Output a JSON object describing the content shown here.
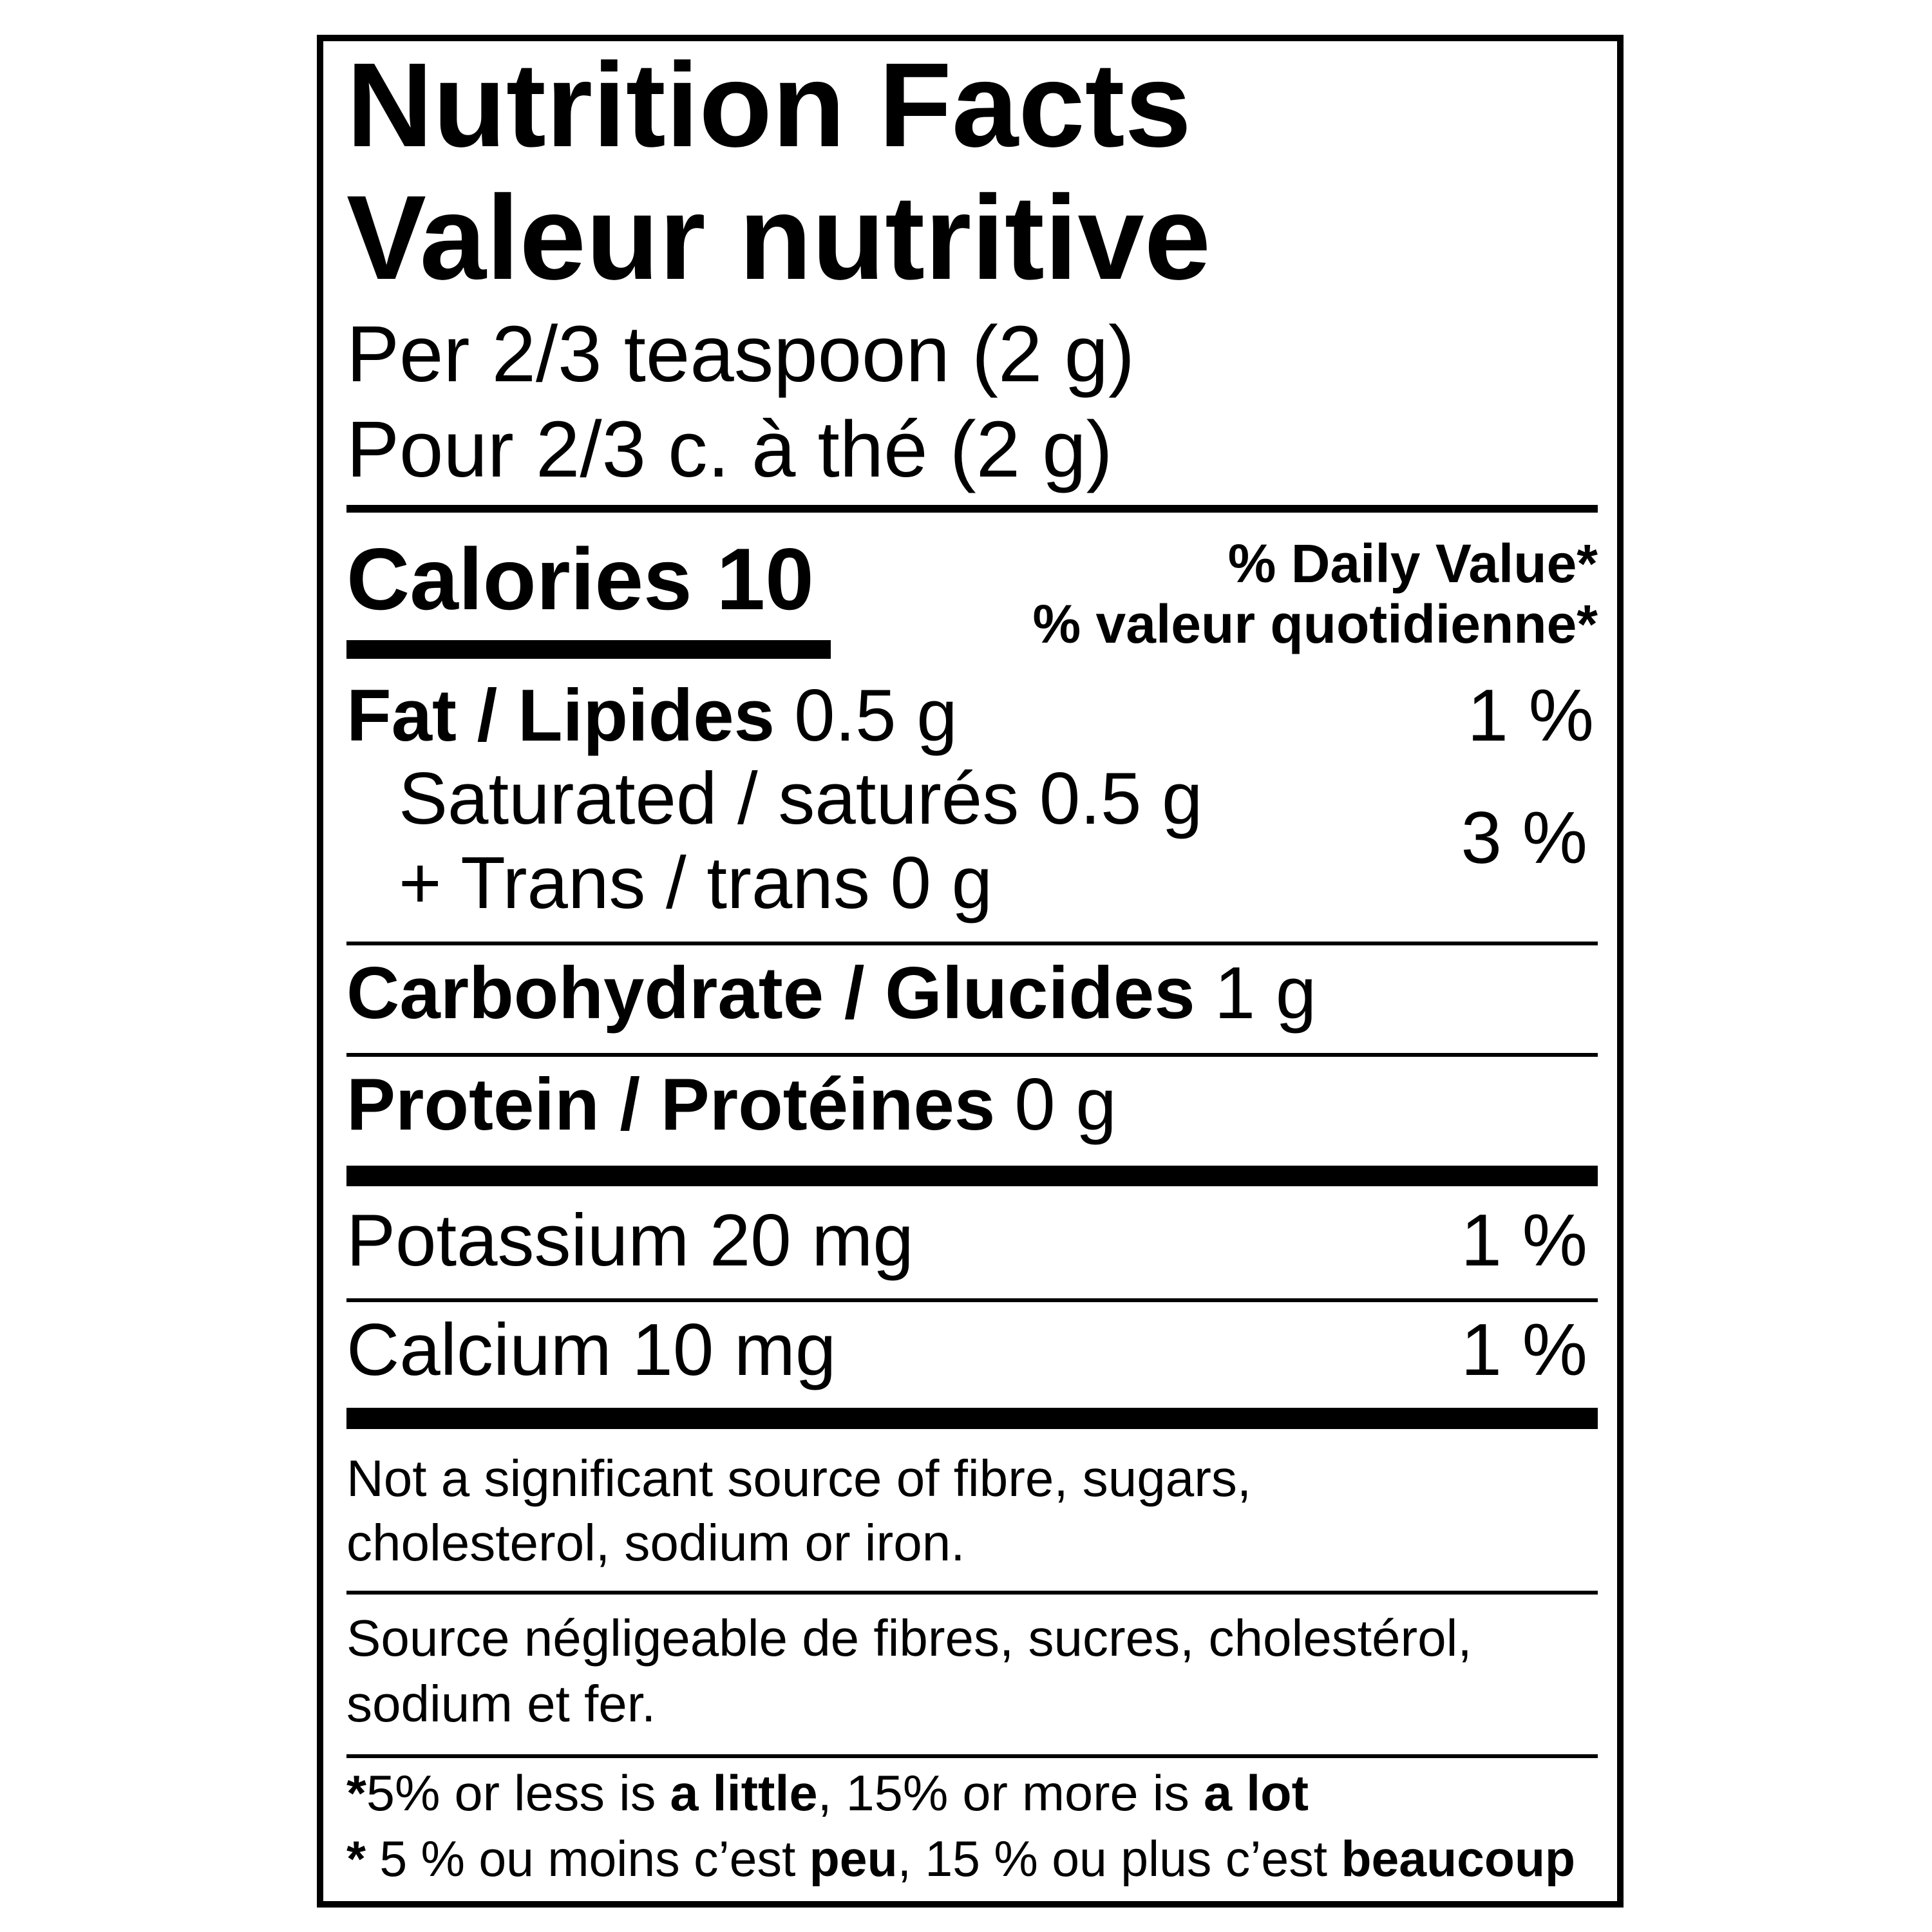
{
  "title": {
    "en": "Nutrition Facts",
    "fr": "Valeur nutritive"
  },
  "serving": {
    "en": "Per 2/3 teaspoon (2 g)",
    "fr": "Pour 2/3 c. à thé (2 g)"
  },
  "calories": "Calories 10",
  "daily_value": {
    "en": "% Daily Value*",
    "fr": "% valeur quotidienne*"
  },
  "nutrients": [
    {
      "name": "Fat / Lipides",
      "amount": "0.5 g",
      "daily_value": "1 %"
    },
    {
      "lines": [
        "Saturated / saturés 0.5 g",
        "+ Trans / trans 0 g"
      ],
      "daily_value": "3 %"
    },
    {
      "name": "Carbohydrate / Glucides",
      "amount": "1 g"
    },
    {
      "name": "Protein / Protéines",
      "amount": "0 g"
    },
    {
      "name": "Potassium 20 mg",
      "daily_value": "1 %"
    },
    {
      "name": "Calcium 10 mg",
      "daily_value": "1 %"
    }
  ],
  "notes": {
    "not_significant": [
      "Not a significant source of fibre, sugars,",
      "cholesterol, sodium or iron."
    ],
    "negligible": [
      "Source négligeable de fibres, sucres, cholestérol,",
      "sodium et fer."
    ]
  },
  "footnote": {
    "en": [
      "*",
      "5% or less is ",
      "a little",
      ", 15% or more is ",
      "a lot"
    ],
    "fr": [
      "*",
      " 5 % ou moins c’est ",
      "peu",
      ", 15 % ou plus c’est ",
      "beaucoup"
    ]
  }
}
